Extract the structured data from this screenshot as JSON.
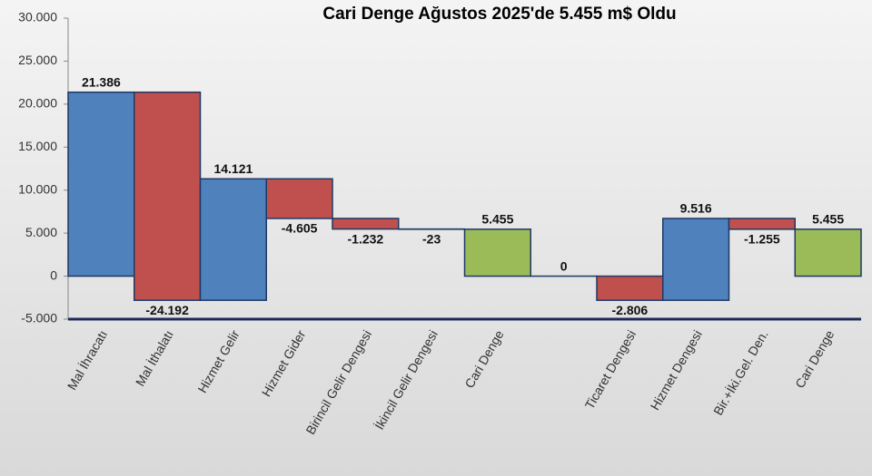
{
  "chart_data": {
    "type": "waterfall",
    "title": "Cari Denge Ağustos 2025'de 5.455 m$ Oldu",
    "categories": [
      "Mal İhracatı",
      "Mal İthalatı",
      "Hizmet Gelir",
      "Hizmet Gider",
      "Birincil Gelir Dengesi",
      "İkincil Gelir Dengesi",
      "Cari Denge",
      null,
      "Ticaret Dengesi",
      "Hizmet Dengesi",
      "Bir.+İki.Gel. Den.",
      "Cari Denge"
    ],
    "values": [
      21386,
      -24192,
      14121,
      -4605,
      -1232,
      -23,
      5455,
      0,
      -2806,
      9516,
      -1255,
      5455
    ],
    "value_labels": [
      "21.386",
      "-24.192",
      "14.121",
      "-4.605",
      "-1.232",
      "-23",
      "5.455",
      "0",
      "-2.806",
      "9.516",
      "-1.255",
      "5.455"
    ],
    "totals": [
      false,
      false,
      false,
      false,
      false,
      false,
      true,
      true,
      false,
      false,
      false,
      true
    ],
    "colors": {
      "increase": "#4f81bd",
      "decrease": "#c0504d",
      "total": "#9bbb59"
    },
    "ylim": [
      -5000,
      30000
    ],
    "yticks": [
      {
        "value": -5000,
        "label": "-5.000"
      },
      0,
      {
        "value": 5000,
        "label": "5.000"
      },
      {
        "value": 10000,
        "label": "10.000"
      },
      {
        "value": 15000,
        "label": "15.000"
      },
      {
        "value": 20000,
        "label": "20.000"
      },
      {
        "value": 25000,
        "label": "25.000"
      },
      {
        "value": 30000,
        "label": "30.000"
      }
    ],
    "grid": false
  }
}
